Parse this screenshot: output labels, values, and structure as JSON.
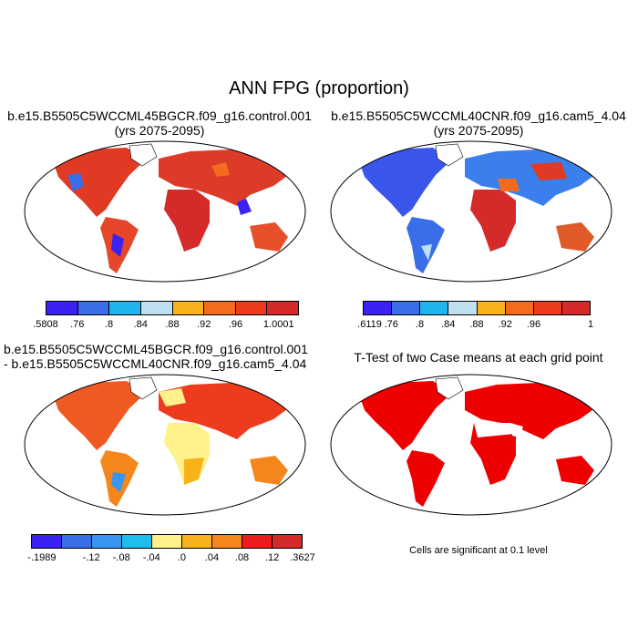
{
  "title": "ANN FPG (proportion)",
  "panels": {
    "top_left": {
      "title_line1": "b.e15.B5505C5WCCML45BGCR.f09_g16.control.001",
      "title_line2": "(yrs 2075-2095)",
      "colorbar": {
        "colors": [
          "#3b22f2",
          "#3a6de8",
          "#1fb4ec",
          "#bfe0f0",
          "#f8b31c",
          "#f46b20",
          "#ee3b1d",
          "#d42a2a"
        ],
        "labels": [
          ".5808",
          ".76",
          ".8",
          ".84",
          ".88",
          ".92",
          ".96",
          "1.0001"
        ]
      }
    },
    "top_right": {
      "title_line1": "b.e15.B5505C5WCCML40CNR.f09_g16.cam5_4.04",
      "title_line2": "(yrs 2075-2095)",
      "colorbar": {
        "colors": [
          "#3b22f2",
          "#3a6de8",
          "#1fb4ec",
          "#bfe0f0",
          "#f8b31c",
          "#f46b20",
          "#ee3b1d",
          "#d42a2a"
        ],
        "labels": [
          ".6119",
          ".76",
          ".8",
          ".84",
          ".88",
          ".92",
          ".96",
          "1"
        ]
      }
    },
    "bottom_left": {
      "title_line1": "b.e15.B5505C5WCCML45BGCR.f09_g16.control.001",
      "title_line2": "- b.e15.B5505C5WCCML40CNR.f09_g16.cam5_4.04",
      "colorbar": {
        "colors": [
          "#3b22f2",
          "#3a6de8",
          "#3a95f0",
          "#1fbcec",
          "#fff28a",
          "#f8b31c",
          "#f4861c",
          "#ee1d1d",
          "#d42a2a"
        ],
        "labels": [
          "-.1989",
          "-.12",
          "-.08",
          "-.04",
          ".0",
          ".04",
          ".08",
          ".12",
          ".3627"
        ]
      }
    },
    "bottom_right": {
      "title_line1": "T-Test of two Case means at each grid point",
      "note": "Cells are significant at 0.1 level"
    }
  }
}
